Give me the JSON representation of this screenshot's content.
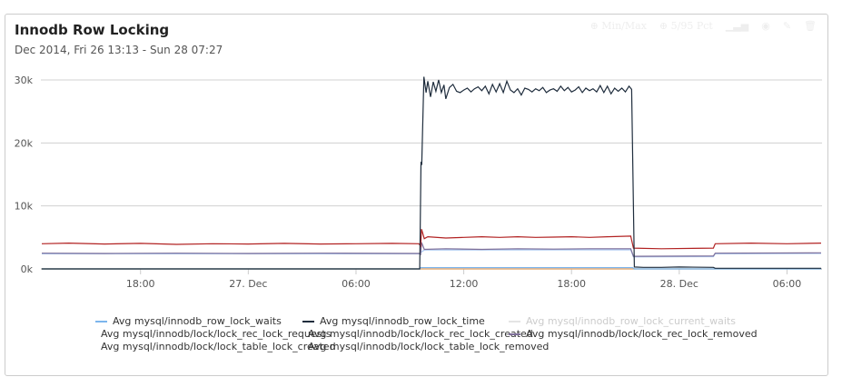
{
  "title": "Innodb Row Locking",
  "subtitle": "Dec 2014, Fri 26 13:13 - Sun 28 07:27",
  "toolbar": {
    "minmax": "Min/Max",
    "pct": "5/95 Pct"
  },
  "chart_data": {
    "type": "line",
    "x_unit": "hours since Dec 26 00:00",
    "xlim": [
      12.45,
      55.95
    ],
    "ylim": [
      0,
      30000
    ],
    "yticks": [
      {
        "v": 0,
        "label": "0k"
      },
      {
        "v": 10000,
        "label": "10k"
      },
      {
        "v": 20000,
        "label": "20k"
      },
      {
        "v": 30000,
        "label": "30k"
      }
    ],
    "xticks": [
      {
        "v": 18,
        "label": "18:00"
      },
      {
        "v": 24,
        "label": "27. Dec"
      },
      {
        "v": 30,
        "label": "06:00"
      },
      {
        "v": 36,
        "label": "12:00"
      },
      {
        "v": 42,
        "label": "18:00"
      },
      {
        "v": 48,
        "label": "28. Dec"
      },
      {
        "v": 54,
        "label": "06:00"
      }
    ],
    "grid": true,
    "legend_position": "bottom",
    "series": [
      {
        "name": "Avg mysql/innodb_row_lock_waits",
        "color": "#7cb5ec",
        "visible": true,
        "points": [
          [
            12.5,
            0
          ],
          [
            33.55,
            0
          ],
          [
            33.6,
            200
          ],
          [
            45.4,
            200
          ],
          [
            45.5,
            0
          ],
          [
            55.9,
            0
          ]
        ]
      },
      {
        "name": "Avg mysql/innodb_row_lock_time",
        "color": "#1f2d3d",
        "visible": true,
        "points": [
          [
            12.5,
            0
          ],
          [
            33.55,
            0
          ],
          [
            33.62,
            17000
          ],
          [
            33.66,
            16500
          ],
          [
            33.78,
            30500
          ],
          [
            33.9,
            28000
          ],
          [
            34.0,
            29800
          ],
          [
            34.15,
            27300
          ],
          [
            34.3,
            29700
          ],
          [
            34.45,
            28200
          ],
          [
            34.6,
            30000
          ],
          [
            34.75,
            28000
          ],
          [
            34.9,
            29200
          ],
          [
            35.0,
            27000
          ],
          [
            35.2,
            28800
          ],
          [
            35.4,
            29300
          ],
          [
            35.6,
            28200
          ],
          [
            35.8,
            28000
          ],
          [
            36.0,
            28400
          ],
          [
            36.2,
            28700
          ],
          [
            36.4,
            28100
          ],
          [
            36.6,
            28600
          ],
          [
            36.8,
            28900
          ],
          [
            37.0,
            28300
          ],
          [
            37.2,
            29000
          ],
          [
            37.4,
            27800
          ],
          [
            37.6,
            29300
          ],
          [
            37.8,
            28100
          ],
          [
            38.0,
            29400
          ],
          [
            38.2,
            28000
          ],
          [
            38.4,
            29800
          ],
          [
            38.6,
            28400
          ],
          [
            38.8,
            28000
          ],
          [
            39.0,
            28600
          ],
          [
            39.2,
            27600
          ],
          [
            39.4,
            28700
          ],
          [
            39.6,
            28500
          ],
          [
            39.8,
            28100
          ],
          [
            40.0,
            28600
          ],
          [
            40.2,
            28300
          ],
          [
            40.4,
            28800
          ],
          [
            40.6,
            28000
          ],
          [
            40.8,
            28400
          ],
          [
            41.0,
            28600
          ],
          [
            41.2,
            28200
          ],
          [
            41.4,
            29000
          ],
          [
            41.6,
            28300
          ],
          [
            41.8,
            28800
          ],
          [
            42.0,
            28100
          ],
          [
            42.2,
            28400
          ],
          [
            42.4,
            28900
          ],
          [
            42.6,
            28000
          ],
          [
            42.8,
            28700
          ],
          [
            43.0,
            28300
          ],
          [
            43.2,
            28600
          ],
          [
            43.4,
            28100
          ],
          [
            43.6,
            29100
          ],
          [
            43.8,
            28000
          ],
          [
            44.0,
            29000
          ],
          [
            44.2,
            27800
          ],
          [
            44.4,
            28700
          ],
          [
            44.6,
            28200
          ],
          [
            44.8,
            28700
          ],
          [
            45.0,
            28100
          ],
          [
            45.2,
            29000
          ],
          [
            45.35,
            28500
          ],
          [
            45.5,
            300
          ],
          [
            46.0,
            250
          ],
          [
            47.0,
            250
          ],
          [
            48.0,
            300
          ],
          [
            49.9,
            250
          ],
          [
            50.0,
            100
          ],
          [
            55.9,
            100
          ]
        ]
      },
      {
        "name": "Avg mysql/innodb_row_lock_current_waits",
        "color": "#e4e4e4",
        "visible": false,
        "points": []
      },
      {
        "name": "Avg mysql/innodb/lock/lock_rec_lock_requests",
        "color": "#b22222",
        "visible": true,
        "points": [
          [
            12.5,
            4000
          ],
          [
            14,
            4100
          ],
          [
            16,
            3950
          ],
          [
            18,
            4050
          ],
          [
            20,
            3900
          ],
          [
            22,
            4000
          ],
          [
            24,
            3950
          ],
          [
            26,
            4050
          ],
          [
            28,
            3950
          ],
          [
            30,
            4000
          ],
          [
            32,
            4050
          ],
          [
            33.5,
            4000
          ],
          [
            33.6,
            3600
          ],
          [
            33.65,
            6300
          ],
          [
            33.8,
            4800
          ],
          [
            34,
            5100
          ],
          [
            35,
            4900
          ],
          [
            36,
            5000
          ],
          [
            37,
            5100
          ],
          [
            38,
            5000
          ],
          [
            39,
            5100
          ],
          [
            40,
            5000
          ],
          [
            41,
            5050
          ],
          [
            42,
            5100
          ],
          [
            43,
            5000
          ],
          [
            44,
            5100
          ],
          [
            45.3,
            5200
          ],
          [
            45.45,
            3300
          ],
          [
            47,
            3200
          ],
          [
            49.9,
            3300
          ],
          [
            50.0,
            4000
          ],
          [
            52,
            4100
          ],
          [
            54,
            4000
          ],
          [
            55.9,
            4100
          ]
        ]
      },
      {
        "name": "Avg mysql/innodb/lock/lock_rec_lock_created",
        "color": "#7fd3e0",
        "visible": true,
        "points": [
          [
            12.5,
            0
          ],
          [
            55.9,
            0
          ]
        ]
      },
      {
        "name": "Avg mysql/innodb/lock/lock_rec_lock_removed",
        "color": "#7e6f99",
        "visible": true,
        "points": [
          [
            12.5,
            2500
          ],
          [
            16,
            2450
          ],
          [
            20,
            2500
          ],
          [
            24,
            2450
          ],
          [
            28,
            2500
          ],
          [
            33.5,
            2450
          ],
          [
            33.6,
            2300
          ],
          [
            33.65,
            4200
          ],
          [
            33.8,
            3100
          ],
          [
            35,
            3200
          ],
          [
            37,
            3100
          ],
          [
            39,
            3200
          ],
          [
            41,
            3150
          ],
          [
            43,
            3200
          ],
          [
            45.3,
            3200
          ],
          [
            45.45,
            2000
          ],
          [
            49.9,
            2050
          ],
          [
            50,
            2500
          ],
          [
            55.9,
            2550
          ]
        ]
      },
      {
        "name": "Avg mysql/innodb/lock/lock_table_lock_created",
        "color": "#f7a35c",
        "visible": true,
        "points": [
          [
            12.5,
            0
          ],
          [
            55.9,
            0
          ]
        ]
      },
      {
        "name": "Avg mysql/innodb/lock/lock_table_lock_removed",
        "color": "#aac8f0",
        "visible": true,
        "points": [
          [
            12.5,
            2400
          ],
          [
            33.5,
            2400
          ],
          [
            33.8,
            3000
          ],
          [
            45.3,
            3050
          ],
          [
            45.45,
            1900
          ],
          [
            49.9,
            1950
          ],
          [
            50,
            2400
          ],
          [
            55.9,
            2450
          ]
        ]
      }
    ]
  }
}
